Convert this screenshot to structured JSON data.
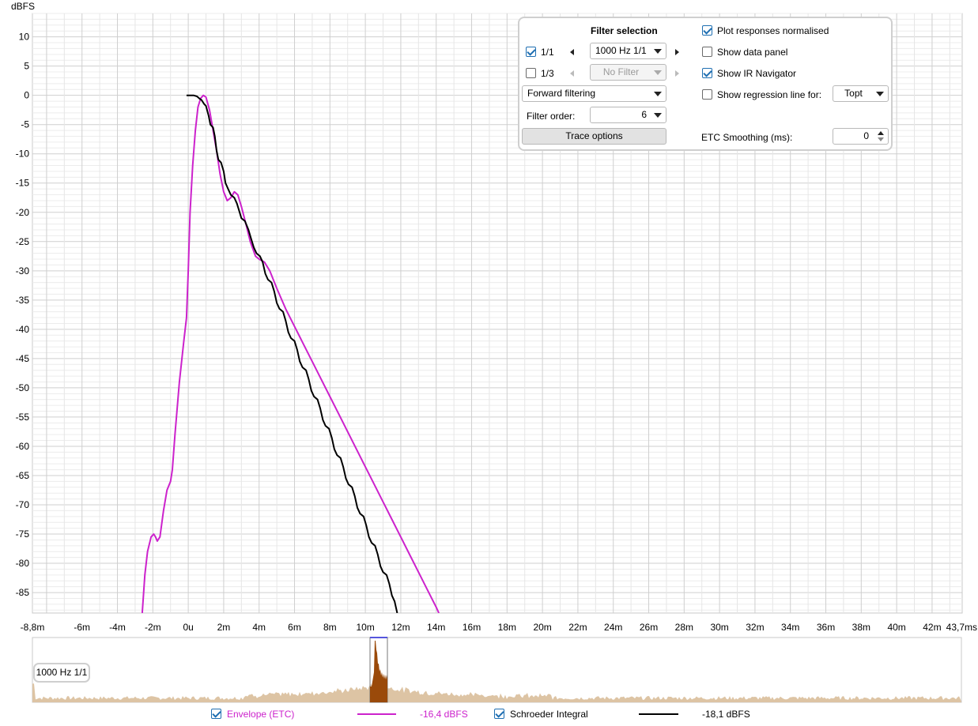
{
  "chart_data": {
    "type": "line",
    "ylabel": "dBFS",
    "ylim": [
      -88.5,
      14
    ],
    "xlim": [
      -8.8,
      43.7
    ],
    "y_ticks": [
      10,
      5,
      0,
      -5,
      -10,
      -15,
      -20,
      -25,
      -30,
      -35,
      -40,
      -45,
      -50,
      -55,
      -60,
      -65,
      -70,
      -75,
      -80,
      -85
    ],
    "x_ticks": [
      {
        "value": -8.8,
        "label": "-8,8m"
      },
      {
        "value": -6,
        "label": "-6m"
      },
      {
        "value": -4,
        "label": "-4m"
      },
      {
        "value": -2,
        "label": "-2m"
      },
      {
        "value": 0,
        "label": "0u"
      },
      {
        "value": 2,
        "label": "2m"
      },
      {
        "value": 4,
        "label": "4m"
      },
      {
        "value": 6,
        "label": "6m"
      },
      {
        "value": 8,
        "label": "8m"
      },
      {
        "value": 10,
        "label": "10m"
      },
      {
        "value": 12,
        "label": "12m"
      },
      {
        "value": 14,
        "label": "14m"
      },
      {
        "value": 16,
        "label": "16m"
      },
      {
        "value": 18,
        "label": "18m"
      },
      {
        "value": 20,
        "label": "20m"
      },
      {
        "value": 22,
        "label": "22m"
      },
      {
        "value": 24,
        "label": "24m"
      },
      {
        "value": 26,
        "label": "26m"
      },
      {
        "value": 28,
        "label": "28m"
      },
      {
        "value": 30,
        "label": "30m"
      },
      {
        "value": 32,
        "label": "32m"
      },
      {
        "value": 34,
        "label": "34m"
      },
      {
        "value": 36,
        "label": "36m"
      },
      {
        "value": 38,
        "label": "38m"
      },
      {
        "value": 40,
        "label": "40m"
      },
      {
        "value": 42,
        "label": "42m"
      },
      {
        "value": 43.7,
        "label": "43,7ms"
      }
    ],
    "grid": true,
    "series": [
      {
        "name": "Envelope (ETC)",
        "color": "#cc22cc",
        "points": [
          [
            -2.6,
            -88.5
          ],
          [
            -2.45,
            -82
          ],
          [
            -2.3,
            -78
          ],
          [
            -2.1,
            -75.5
          ],
          [
            -1.95,
            -75
          ],
          [
            -1.85,
            -75.5
          ],
          [
            -1.75,
            -76.2
          ],
          [
            -1.6,
            -75.5
          ],
          [
            -1.4,
            -71
          ],
          [
            -1.2,
            -67.5
          ],
          [
            -1.0,
            -66
          ],
          [
            -0.9,
            -64
          ],
          [
            -0.75,
            -58
          ],
          [
            -0.5,
            -49
          ],
          [
            -0.25,
            -42
          ],
          [
            -0.1,
            -38
          ],
          [
            0.0,
            -30
          ],
          [
            0.1,
            -20
          ],
          [
            0.25,
            -12
          ],
          [
            0.4,
            -6
          ],
          [
            0.55,
            -2
          ],
          [
            0.7,
            -0.5
          ],
          [
            0.85,
            0
          ],
          [
            1.0,
            -0.3
          ],
          [
            1.2,
            -2.5
          ],
          [
            1.4,
            -6
          ],
          [
            1.6,
            -9.5
          ],
          [
            1.8,
            -13.5
          ],
          [
            2.0,
            -16.5
          ],
          [
            2.2,
            -18
          ],
          [
            2.4,
            -17.5
          ],
          [
            2.6,
            -16.5
          ],
          [
            2.8,
            -17
          ],
          [
            3.0,
            -19
          ],
          [
            3.3,
            -22.5
          ],
          [
            3.5,
            -25
          ],
          [
            3.8,
            -27.5
          ],
          [
            4.0,
            -28
          ],
          [
            4.3,
            -28.5
          ],
          [
            4.6,
            -30
          ],
          [
            5.0,
            -33
          ],
          [
            5.5,
            -36.5
          ],
          [
            6.0,
            -39.5
          ],
          [
            6.5,
            -42.5
          ],
          [
            7.0,
            -45.5
          ],
          [
            7.5,
            -48.5
          ],
          [
            8.0,
            -51.5
          ],
          [
            8.5,
            -54.5
          ],
          [
            9.0,
            -57.5
          ],
          [
            9.5,
            -60.5
          ],
          [
            10.0,
            -63.5
          ],
          [
            10.5,
            -66.5
          ],
          [
            11.0,
            -69.5
          ],
          [
            11.5,
            -72.5
          ],
          [
            12.0,
            -75.5
          ],
          [
            12.5,
            -78.5
          ],
          [
            13.0,
            -81.5
          ],
          [
            13.5,
            -84.5
          ],
          [
            14.0,
            -87.5
          ],
          [
            14.15,
            -88.5
          ]
        ]
      },
      {
        "name": "Schroeder Integral",
        "color": "#000000",
        "points": [
          [
            -0.1,
            0
          ],
          [
            0.3,
            0
          ],
          [
            0.5,
            -0.2
          ],
          [
            0.65,
            -0.6
          ],
          [
            0.75,
            -0.8
          ],
          [
            0.9,
            -1.5
          ],
          [
            1.0,
            -1.8
          ],
          [
            1.15,
            -3.5
          ],
          [
            1.25,
            -5
          ],
          [
            1.4,
            -5.5
          ],
          [
            1.5,
            -7
          ],
          [
            1.6,
            -9.5
          ],
          [
            1.7,
            -11
          ],
          [
            1.85,
            -11.5
          ],
          [
            2.0,
            -13
          ],
          [
            2.1,
            -15
          ],
          [
            2.25,
            -16
          ],
          [
            2.4,
            -17
          ],
          [
            2.6,
            -17.5
          ],
          [
            2.75,
            -18.5
          ],
          [
            2.9,
            -20
          ],
          [
            3.0,
            -21
          ],
          [
            3.2,
            -21.5
          ],
          [
            3.4,
            -23
          ],
          [
            3.55,
            -24.5
          ],
          [
            3.7,
            -26
          ],
          [
            3.85,
            -27
          ],
          [
            4.05,
            -27.5
          ],
          [
            4.2,
            -28.5
          ],
          [
            4.35,
            -30.5
          ],
          [
            4.5,
            -31.5
          ],
          [
            4.7,
            -32
          ],
          [
            4.85,
            -33.5
          ],
          [
            5.0,
            -35.5
          ],
          [
            5.15,
            -36.5
          ],
          [
            5.35,
            -37
          ],
          [
            5.5,
            -38.5
          ],
          [
            5.65,
            -40.5
          ],
          [
            5.8,
            -41.5
          ],
          [
            6.0,
            -42
          ],
          [
            6.15,
            -43.5
          ],
          [
            6.3,
            -45.5
          ],
          [
            6.45,
            -46.5
          ],
          [
            6.65,
            -47
          ],
          [
            6.8,
            -48.5
          ],
          [
            6.95,
            -50.5
          ],
          [
            7.1,
            -51.5
          ],
          [
            7.3,
            -52
          ],
          [
            7.45,
            -53.5
          ],
          [
            7.6,
            -55.5
          ],
          [
            7.75,
            -56.5
          ],
          [
            7.95,
            -57
          ],
          [
            8.1,
            -58.5
          ],
          [
            8.25,
            -60.5
          ],
          [
            8.4,
            -61.5
          ],
          [
            8.6,
            -62
          ],
          [
            8.75,
            -63.5
          ],
          [
            8.9,
            -65.5
          ],
          [
            9.05,
            -66.5
          ],
          [
            9.25,
            -67
          ],
          [
            9.4,
            -68.5
          ],
          [
            9.55,
            -70.5
          ],
          [
            9.7,
            -71.5
          ],
          [
            9.9,
            -72
          ],
          [
            10.05,
            -73.5
          ],
          [
            10.2,
            -75.5
          ],
          [
            10.35,
            -76.5
          ],
          [
            10.55,
            -77
          ],
          [
            10.7,
            -78.5
          ],
          [
            10.85,
            -80.5
          ],
          [
            11.0,
            -81.5
          ],
          [
            11.2,
            -82
          ],
          [
            11.35,
            -83.5
          ],
          [
            11.5,
            -85.5
          ],
          [
            11.65,
            -86.5
          ],
          [
            11.8,
            -88.5
          ]
        ]
      }
    ]
  },
  "panel": {
    "filter_selection_label": "Filter selection",
    "row_1_1": {
      "label": "1/1",
      "checked": true,
      "combo_value": "1000 Hz 1/1"
    },
    "row_1_3": {
      "label": "1/3",
      "checked": false,
      "combo_value": "No Filter"
    },
    "filtering_mode": "Forward filtering",
    "filter_order_label": "Filter order:",
    "filter_order_value": "6",
    "trace_options_label": "Trace options",
    "plot_normalised": {
      "label": "Plot responses normalised",
      "checked": true
    },
    "show_data_panel": {
      "label": "Show data panel",
      "checked": false
    },
    "show_ir_navigator": {
      "label": "Show IR Navigator",
      "checked": true
    },
    "show_regression": {
      "label": "Show regression line for:",
      "checked": false,
      "combo_value": "Topt"
    },
    "etc_smoothing_label": "ETC Smoothing (ms):",
    "etc_smoothing_value": "0"
  },
  "navigator": {
    "tag": "1000 Hz 1/1",
    "fill_color": "#ddc4a4",
    "peak_color": "#9a4a0a"
  },
  "legend": {
    "envelope": {
      "label": "Envelope (ETC)",
      "value": "-16,4 dBFS",
      "checked": true,
      "color": "#cc22cc"
    },
    "schroeder": {
      "label": "Schroeder Integral",
      "value": "-18,1 dBFS",
      "checked": true,
      "color": "#000000"
    }
  }
}
